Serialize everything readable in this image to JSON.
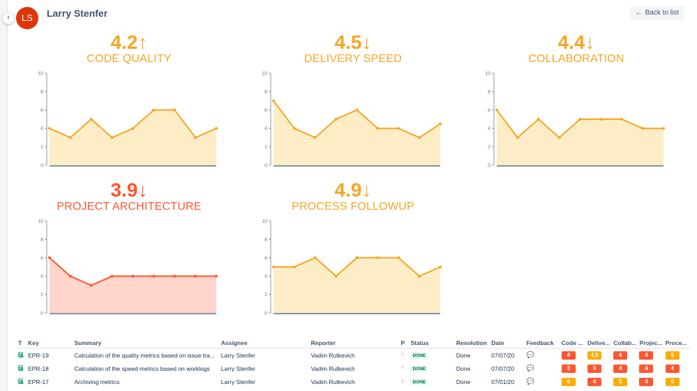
{
  "header": {
    "avatar_initials": "LS",
    "user_name": "Larry Stenfer",
    "back_label": "Back to list",
    "back_arrow": "←",
    "toggle_glyph": "›"
  },
  "colors": {
    "orange": "#f5a623",
    "orange_fill": "#fdedc7",
    "red": "#ff5630",
    "red_fill": "#ffd5cc"
  },
  "metrics": [
    {
      "score": "4.2↑",
      "title": "CODE QUALITY",
      "theme": "orange",
      "chart_data": {
        "type": "area",
        "x": [
          1,
          2,
          3,
          4,
          5,
          6,
          7,
          8,
          9
        ],
        "values": [
          4,
          3,
          5,
          3,
          4,
          6,
          6,
          3,
          4
        ],
        "ylim": [
          0,
          10
        ],
        "yticks": [
          "0",
          "2",
          "4",
          "6",
          "8",
          "10"
        ],
        "title": "CODE QUALITY"
      }
    },
    {
      "score": "4.5↓",
      "title": "DELIVERY SPEED",
      "theme": "orange",
      "chart_data": {
        "type": "area",
        "x": [
          1,
          2,
          3,
          4,
          5,
          6,
          7,
          8,
          9
        ],
        "values": [
          7,
          4,
          3,
          5,
          6,
          4,
          4,
          3,
          4.5
        ],
        "ylim": [
          0,
          10
        ],
        "yticks": [
          "0",
          "2",
          "4",
          "6",
          "8",
          "10"
        ],
        "title": "DELIVERY SPEED"
      }
    },
    {
      "score": "4.4↓",
      "title": "COLLABORATION",
      "theme": "orange",
      "chart_data": {
        "type": "area",
        "x": [
          1,
          2,
          3,
          4,
          5,
          6,
          7,
          8,
          9
        ],
        "values": [
          6,
          3,
          5,
          3,
          5,
          5,
          5,
          4,
          4
        ],
        "ylim": [
          0,
          10
        ],
        "yticks": [
          "0",
          "2",
          "4",
          "6",
          "8",
          "10"
        ],
        "title": "COLLABORATION"
      }
    },
    {
      "score": "3.9↓",
      "title": "PROJECT ARCHITECTURE",
      "theme": "red",
      "chart_data": {
        "type": "area",
        "x": [
          1,
          2,
          3,
          4,
          5,
          6,
          7,
          8,
          9
        ],
        "values": [
          6,
          4,
          3,
          4,
          4,
          4,
          4,
          4,
          4
        ],
        "ylim": [
          0,
          10
        ],
        "yticks": [
          "0",
          "2",
          "4",
          "6",
          "8",
          "10"
        ],
        "title": "PROJECT ARCHITECTURE"
      }
    },
    {
      "score": "4.9↓",
      "title": "PROCESS FOLLOWUP",
      "theme": "orange",
      "chart_data": {
        "type": "area",
        "x": [
          1,
          2,
          3,
          4,
          5,
          6,
          7,
          8,
          9
        ],
        "values": [
          5,
          5,
          6,
          4,
          6,
          6,
          6,
          4,
          5
        ],
        "ylim": [
          0,
          10
        ],
        "yticks": [
          "0",
          "2",
          "4",
          "6",
          "8",
          "10"
        ],
        "title": "PROCESS FOLLOWUP"
      }
    }
  ],
  "table": {
    "headers": [
      "T",
      "Key",
      "Summary",
      "Assignee",
      "Reporter",
      "P",
      "Status",
      "Resolution",
      "Date",
      "Feedback",
      "Code ...",
      "Delive...",
      "Collab...",
      "Projec...",
      "Proce..."
    ],
    "rows": [
      {
        "key": "EPR-19",
        "summary": "Calculation of the quality metrics based on issue tra...",
        "assignee": "Larry Stenfer",
        "reporter": "Vadim Rutkevich",
        "priority": "↑",
        "status": "DONE",
        "resolution": "Done",
        "date": "07/07/20",
        "feedback": "💬",
        "scores": [
          {
            "value": "4",
            "color": "#ff5630"
          },
          {
            "value": "4.5",
            "color": "#ffab00"
          },
          {
            "value": "4",
            "color": "#ff5630"
          },
          {
            "value": "4",
            "color": "#ff5630"
          },
          {
            "value": "5",
            "color": "#ffab00"
          }
        ]
      },
      {
        "key": "EPR-18",
        "summary": "Calculation of the speed metrics based on worklogs",
        "assignee": "Larry Stenfer",
        "reporter": "Vadim Rutkevich",
        "priority": "↑",
        "status": "DONE",
        "resolution": "Done",
        "date": "07/07/20",
        "feedback": "💬",
        "scores": [
          {
            "value": "3",
            "color": "#ff5630"
          },
          {
            "value": "3",
            "color": "#ff5630"
          },
          {
            "value": "4",
            "color": "#ff5630"
          },
          {
            "value": "4",
            "color": "#ff5630"
          },
          {
            "value": "4",
            "color": "#ff5630"
          }
        ]
      },
      {
        "key": "EPR-17",
        "summary": "Archiving metrics",
        "assignee": "Larry Stenfer",
        "reporter": "Vadim Rutkevich",
        "priority": "↑",
        "status": "DONE",
        "resolution": "Done",
        "date": "07/01/20",
        "feedback": "💬",
        "scores": [
          {
            "value": "6",
            "color": "#ffab00"
          },
          {
            "value": "4",
            "color": "#ff5630"
          },
          {
            "value": "5",
            "color": "#ffab00"
          },
          {
            "value": "4",
            "color": "#ff5630"
          },
          {
            "value": "6",
            "color": "#ffab00"
          }
        ]
      }
    ]
  }
}
